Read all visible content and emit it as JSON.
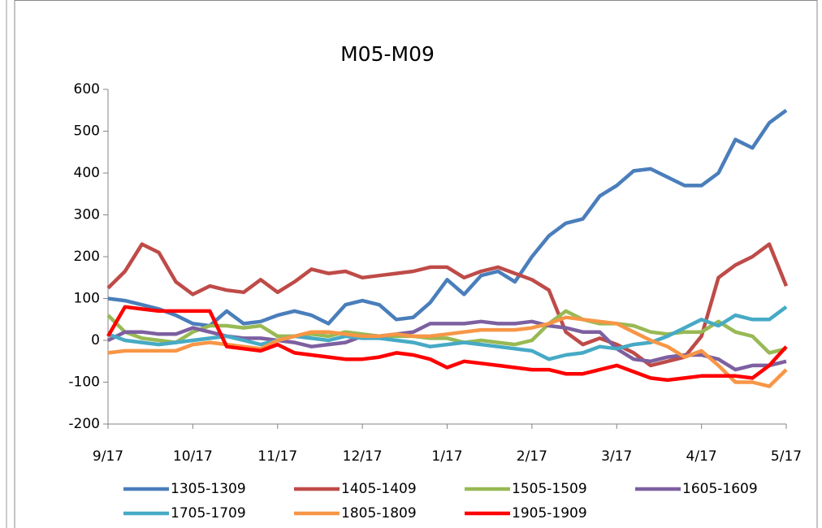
{
  "chart_data": {
    "type": "line",
    "title": "M05-M09",
    "categories": [
      "9/17",
      null,
      null,
      null,
      null,
      "10/17",
      null,
      null,
      null,
      null,
      "11/17",
      null,
      null,
      null,
      null,
      "12/17",
      null,
      null,
      null,
      null,
      "1/17",
      null,
      null,
      null,
      null,
      "2/17",
      null,
      null,
      null,
      null,
      "3/17",
      null,
      null,
      null,
      null,
      "4/17",
      null,
      null,
      null,
      null,
      "5/17"
    ],
    "ylim": [
      -200,
      600
    ],
    "yticks": [
      -200,
      -100,
      0,
      100,
      200,
      300,
      400,
      500,
      600
    ],
    "grid": false,
    "legend": "bottom",
    "series": [
      {
        "name": "1305-1309",
        "color": "#4a7ebb",
        "values": [
          100,
          95,
          85,
          75,
          60,
          40,
          35,
          70,
          40,
          45,
          60,
          70,
          60,
          40,
          85,
          95,
          85,
          50,
          55,
          90,
          145,
          110,
          155,
          165,
          140,
          200,
          250,
          280,
          290,
          345,
          370,
          405,
          410,
          390,
          370,
          370,
          400,
          480,
          460,
          520,
          550
        ]
      },
      {
        "name": "1405-1409",
        "color": "#be4b48",
        "values": [
          125,
          165,
          230,
          210,
          140,
          110,
          130,
          120,
          115,
          145,
          115,
          140,
          170,
          160,
          165,
          150,
          155,
          160,
          165,
          175,
          175,
          150,
          165,
          175,
          160,
          145,
          120,
          20,
          -10,
          5,
          -10,
          -30,
          -60,
          -50,
          -40,
          10,
          150,
          180,
          200,
          230,
          130
        ]
      },
      {
        "name": "1505-1509",
        "color": "#98b954",
        "values": [
          60,
          20,
          5,
          0,
          -5,
          20,
          35,
          35,
          30,
          35,
          10,
          10,
          15,
          10,
          20,
          15,
          10,
          10,
          10,
          5,
          5,
          -5,
          0,
          -5,
          -10,
          0,
          40,
          70,
          50,
          40,
          40,
          35,
          20,
          15,
          20,
          20,
          45,
          20,
          10,
          -30,
          -20
        ]
      },
      {
        "name": "1605-1609",
        "color": "#7d60a0",
        "values": [
          0,
          20,
          20,
          15,
          15,
          30,
          20,
          10,
          5,
          5,
          0,
          -5,
          -15,
          -10,
          -5,
          10,
          10,
          15,
          20,
          40,
          40,
          40,
          45,
          40,
          40,
          45,
          35,
          30,
          20,
          20,
          -20,
          -45,
          -50,
          -40,
          -35,
          -35,
          -45,
          -70,
          -60,
          -60,
          -50
        ]
      },
      {
        "name": "1705-1709",
        "color": "#46aac5",
        "values": [
          15,
          0,
          -5,
          -10,
          -5,
          0,
          5,
          10,
          0,
          -10,
          0,
          10,
          5,
          0,
          10,
          5,
          5,
          0,
          -5,
          -15,
          -10,
          -5,
          -10,
          -15,
          -20,
          -25,
          -45,
          -35,
          -30,
          -15,
          -20,
          -10,
          -5,
          10,
          30,
          50,
          35,
          60,
          50,
          50,
          80
        ]
      },
      {
        "name": "1805-1809",
        "color": "#f79646",
        "values": [
          -30,
          -25,
          -25,
          -25,
          -25,
          -10,
          -5,
          -10,
          -15,
          -20,
          0,
          10,
          20,
          20,
          15,
          10,
          10,
          15,
          10,
          10,
          15,
          20,
          25,
          25,
          25,
          30,
          40,
          55,
          50,
          45,
          40,
          20,
          0,
          -15,
          -40,
          -25,
          -60,
          -100,
          -100,
          -110,
          -70
        ]
      },
      {
        "name": "1905-1909",
        "color": "#ff0000",
        "values": [
          10,
          80,
          75,
          70,
          70,
          70,
          70,
          -15,
          -20,
          -25,
          -10,
          -30,
          -35,
          -40,
          -45,
          -45,
          -40,
          -30,
          -35,
          -45,
          -65,
          -50,
          -55,
          -60,
          -65,
          -70,
          -70,
          -80,
          -80,
          -70,
          -60,
          -75,
          -90,
          -95,
          -90,
          -85,
          -85,
          -85,
          -90,
          -60,
          -15
        ]
      }
    ]
  }
}
